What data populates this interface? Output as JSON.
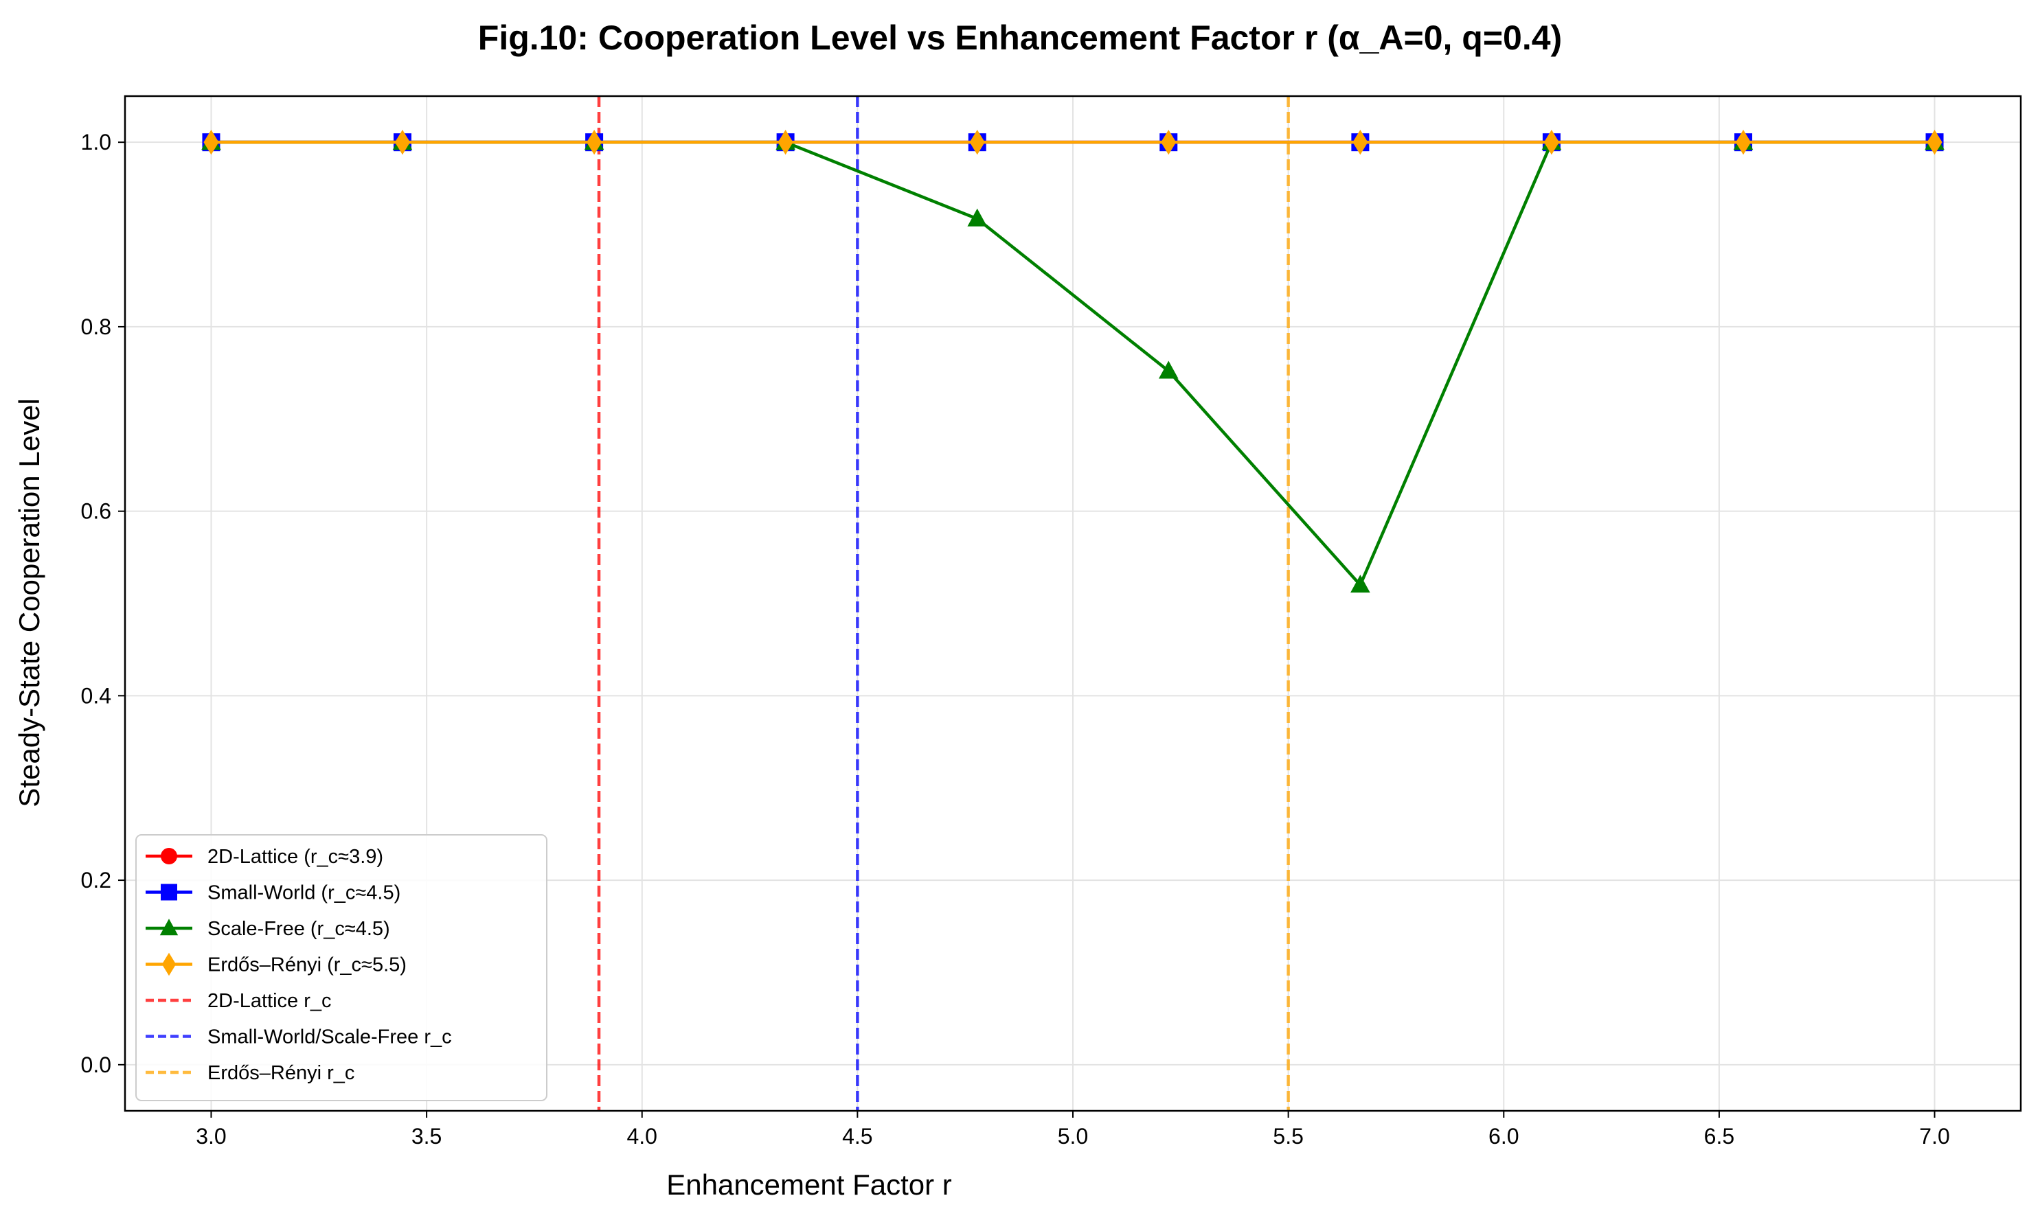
{
  "chart_data": {
    "type": "line",
    "title": "Fig.10: Cooperation Level vs Enhancement Factor r (α_A=0, q=0.4)",
    "xlabel": "Enhancement Factor r",
    "ylabel": "Steady-State Cooperation Level",
    "xlim": [
      2.8,
      7.2
    ],
    "ylim": [
      -0.05,
      1.05
    ],
    "xticks": [
      "3.0",
      "3.5",
      "4.0",
      "4.5",
      "5.0",
      "5.5",
      "6.0",
      "6.5",
      "7.0"
    ],
    "yticks": [
      "0.0",
      "0.2",
      "0.4",
      "0.6",
      "0.8",
      "1.0"
    ],
    "grid": true,
    "legend_position": "lower-left",
    "x": [
      3.0,
      3.444,
      3.889,
      4.333,
      4.778,
      5.222,
      5.667,
      6.111,
      6.556,
      7.0
    ],
    "series": [
      {
        "name": "2D-Lattice (r_c≈3.9)",
        "color": "#ff0000",
        "marker": "circle",
        "values": [
          1.0,
          1.0,
          1.0,
          1.0,
          1.0,
          1.0,
          1.0,
          1.0,
          1.0,
          1.0
        ]
      },
      {
        "name": "Small-World (r_c≈4.5)",
        "color": "#0000ff",
        "marker": "square",
        "values": [
          1.0,
          1.0,
          1.0,
          1.0,
          1.0,
          1.0,
          1.0,
          1.0,
          1.0,
          1.0
        ]
      },
      {
        "name": "Scale-Free (r_c≈4.5)",
        "color": "#008000",
        "marker": "triangle",
        "values": [
          1.0,
          1.0,
          1.0,
          1.0,
          0.917,
          0.752,
          0.52,
          1.0,
          1.0,
          1.0
        ]
      },
      {
        "name": "Erdős–Rényi (r_c≈5.5)",
        "color": "#ffa500",
        "marker": "diamond",
        "values": [
          1.0,
          1.0,
          1.0,
          1.0,
          1.0,
          1.0,
          1.0,
          1.0,
          1.0,
          1.0
        ]
      }
    ],
    "vlines": [
      {
        "name": "2D-Lattice r_c",
        "x": 3.9,
        "color": "#ff0000"
      },
      {
        "name": "Small-World/Scale-Free r_c",
        "x": 4.5,
        "color": "#0000ff"
      },
      {
        "name": "Erdős–Rényi r_c",
        "x": 5.5,
        "color": "#ffa500"
      }
    ]
  }
}
